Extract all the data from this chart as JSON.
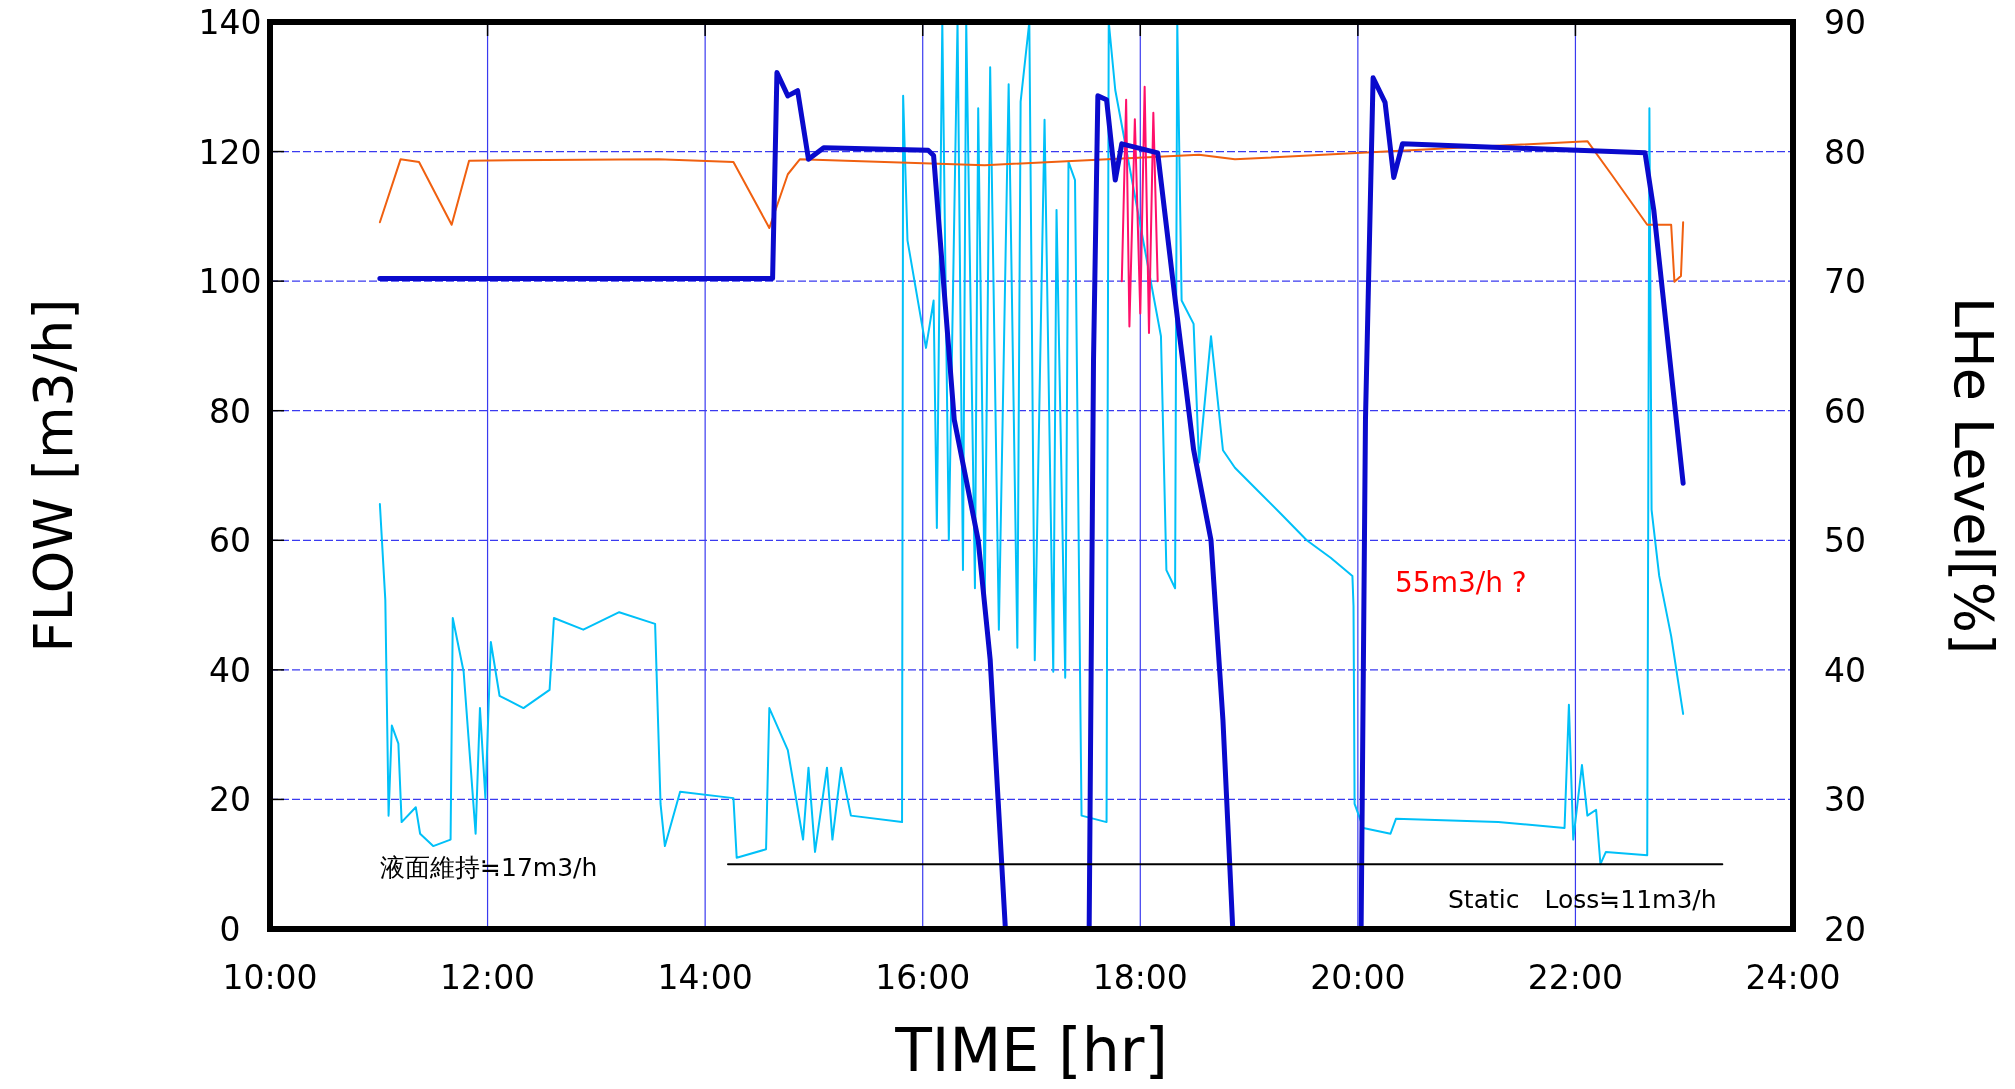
{
  "chart_data": {
    "type": "line",
    "xlabel": "TIME [hr]",
    "ylabel": "FLOW [m3/h]",
    "y2label": "LHe Level[%]",
    "xlim": [
      10,
      24
    ],
    "xticks": [
      {
        "value": 10,
        "label": "10:00"
      },
      {
        "value": 12,
        "label": "12:00"
      },
      {
        "value": 14,
        "label": "14:00"
      },
      {
        "value": 16,
        "label": "16:00"
      },
      {
        "value": 18,
        "label": "18:00"
      },
      {
        "value": 20,
        "label": "20:00"
      },
      {
        "value": 22,
        "label": "22:00"
      },
      {
        "value": 24,
        "label": "24:00"
      }
    ],
    "ylim": [
      0,
      140
    ],
    "yticks": [
      0,
      20,
      40,
      60,
      80,
      100,
      120,
      140
    ],
    "y2lim": [
      20,
      90
    ],
    "y2ticks": [
      20,
      30,
      40,
      50,
      60,
      70,
      80,
      90
    ],
    "grid": true,
    "annotations": [
      "液面維持≒17m3/h",
      "Static　Loss≒11m3/h",
      "55m3/h ?"
    ],
    "series": [
      {
        "color": "#00c0f8",
        "x": [
          11.01,
          11.06,
          11.09,
          11.12,
          11.18,
          11.21,
          11.34,
          11.38,
          11.5,
          11.66,
          11.68,
          11.78,
          11.89,
          11.93,
          11.98,
          12.03,
          12.11,
          12.33,
          12.57,
          12.61,
          12.88,
          13.21,
          13.54,
          13.59,
          13.63,
          13.77,
          14.26,
          14.29,
          14.56,
          14.59,
          14.76,
          14.9,
          14.95,
          15.01,
          15.12,
          15.17,
          15.25,
          15.34,
          15.81,
          15.82,
          15.86,
          16.03,
          16.1,
          16.13,
          16.18,
          16.24,
          16.32,
          16.37,
          16.4,
          16.48,
          16.51,
          16.57,
          16.62,
          16.7,
          16.79,
          16.87,
          16.9,
          16.98,
          17.03,
          17.12,
          17.2,
          17.23,
          17.31,
          17.34,
          17.4,
          17.45,
          17.46,
          17.69,
          17.71,
          17.77,
          18.19,
          18.24,
          18.32,
          18.34,
          18.38,
          18.49,
          18.54,
          18.65,
          18.76,
          18.87,
          19.09,
          19.31,
          19.53,
          19.75,
          19.95,
          19.96,
          19.97,
          20.05,
          20.3,
          20.35,
          21.29,
          21.9,
          21.94,
          21.98,
          22.06,
          22.11,
          22.19,
          22.23,
          22.28,
          22.66,
          22.68,
          22.7,
          22.77,
          22.88,
          22.99
        ],
        "values": [
          65.6,
          50.8,
          17.5,
          31.4,
          28.6,
          16.5,
          18.8,
          14.7,
          12.8,
          13.8,
          48,
          39.7,
          14.7,
          34.1,
          20.2,
          44.3,
          36,
          34.1,
          36.9,
          48,
          46.2,
          48.9,
          47.1,
          19.3,
          12.8,
          21.2,
          20.2,
          11,
          12.3,
          34.1,
          27.6,
          13.8,
          24.9,
          11.9,
          24.9,
          13.8,
          24.9,
          17.5,
          16.5,
          128.6,
          106.3,
          89.7,
          97,
          61.9,
          140,
          60,
          140,
          55.4,
          140,
          52.6,
          126.7,
          50.8,
          133,
          46.2,
          130.4,
          43.4,
          127.7,
          140,
          41.5,
          124.9,
          39.7,
          111,
          38.8,
          118.4,
          115.6,
          33.2,
          17.5,
          16.5,
          140,
          129.5,
          91.5,
          55.4,
          52.6,
          140,
          97,
          93.4,
          72,
          91.5,
          73.9,
          71.2,
          67.5,
          63.8,
          60,
          57.3,
          54.5,
          49.9,
          19.3,
          15.6,
          14.7,
          17,
          16.5,
          15.6,
          34.6,
          13.8,
          25.3,
          17.5,
          18.4,
          10,
          11.9,
          11.4,
          126.7,
          64.7,
          54.5,
          45.2,
          33.2
        ]
      },
      {
        "color": "#f06010",
        "x": [
          11.01,
          11.2,
          11.37,
          11.67,
          11.83,
          13.57,
          14.26,
          14.59,
          14.76,
          14.87,
          16.57,
          18.54,
          18.87,
          22.11,
          22.33,
          22.66,
          22.88,
          22.91,
          22.97,
          22.99
        ],
        "values": [
          109.1,
          118.8,
          118.4,
          108.7,
          118.6,
          118.8,
          118.4,
          108.2,
          116.5,
          118.8,
          117.9,
          119.5,
          118.8,
          121.6,
          116.5,
          108.7,
          108.7,
          99.9,
          100.8,
          109.1
        ]
      },
      {
        "color": "#ff0f6a",
        "x": [
          17.83,
          17.87,
          17.9,
          17.95,
          18.0,
          18.04,
          18.08,
          18.12,
          18.16
        ],
        "values": [
          100,
          128,
          93,
          125,
          95,
          130,
          92,
          126,
          100
        ]
      },
      {
        "color": "#0a0acc",
        "axis": "y2",
        "x": [
          11.01,
          14.62,
          14.66,
          14.76,
          14.85,
          14.95,
          15.09,
          16.05,
          16.1,
          16.29,
          16.51,
          16.62,
          16.76
        ],
        "values": [
          70.2,
          70.2,
          86.1,
          84.3,
          84.7,
          79.4,
          80.3,
          80.1,
          79.7,
          59.3,
          50,
          40.8,
          20
        ]
      },
      {
        "color": "#0a0acc",
        "axis": "y2",
        "x": [
          17.53,
          17.57,
          17.61,
          17.69,
          17.77,
          17.83,
          18.16,
          18.32,
          18.49,
          18.65,
          18.76,
          18.85
        ],
        "values": [
          20,
          63.9,
          84.3,
          84,
          77.8,
          80.6,
          79.9,
          68.6,
          57,
          50,
          36.1,
          20
        ]
      },
      {
        "color": "#0a0acc",
        "axis": "y2",
        "x": [
          20.03,
          20.07,
          20.14,
          20.25,
          20.33,
          20.41,
          22.64,
          22.72,
          22.99
        ],
        "values": [
          20,
          59.3,
          85.7,
          83.8,
          78,
          80.6,
          79.9,
          75.5,
          54.4
        ]
      },
      {
        "color": "#000000",
        "x": [
          14.21,
          23.35
        ],
        "values": [
          10,
          10
        ]
      }
    ]
  }
}
